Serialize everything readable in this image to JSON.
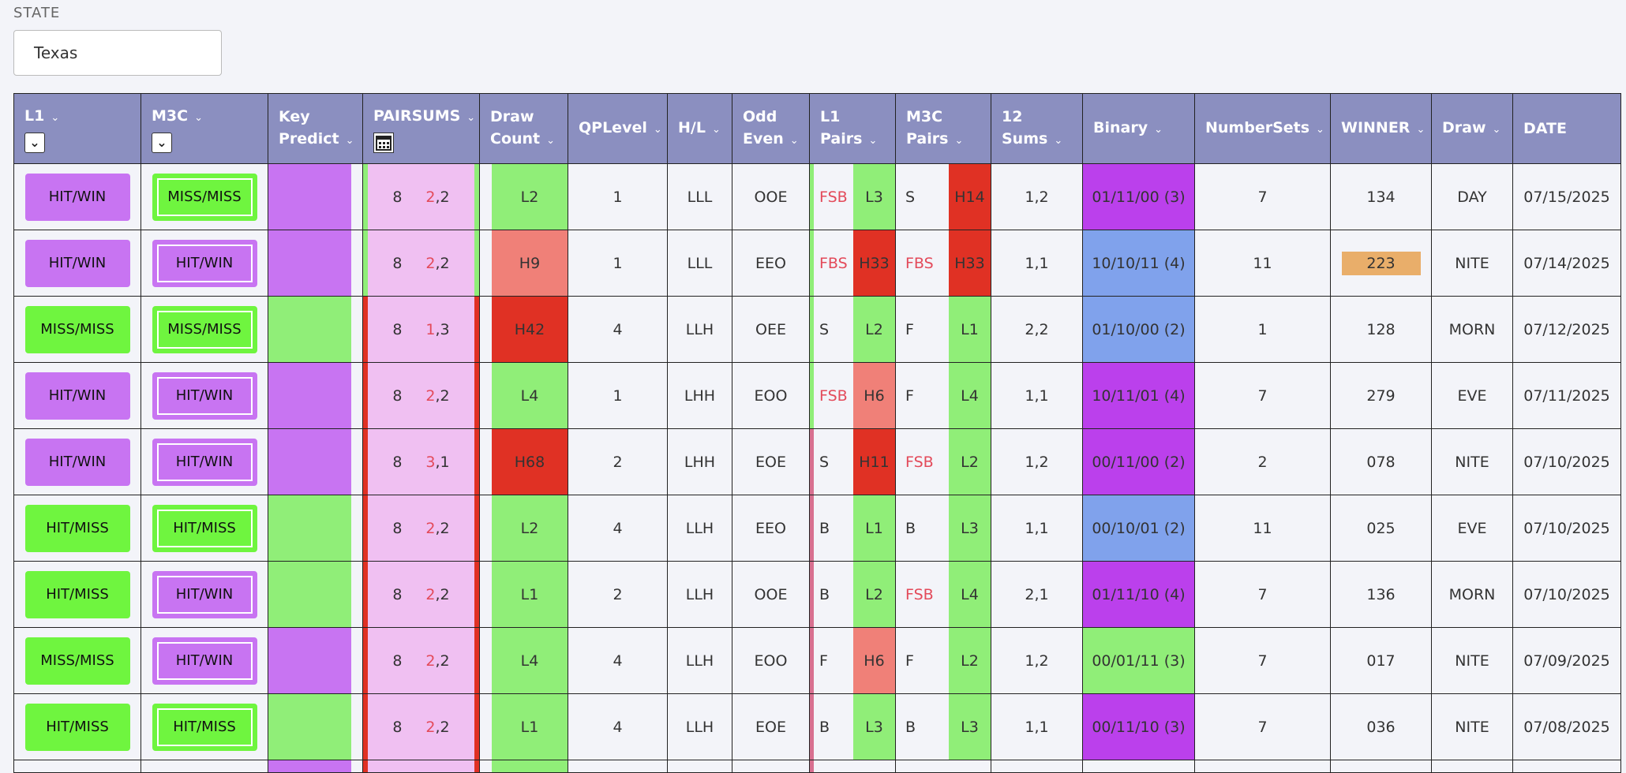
{
  "state": {
    "label": "STATE",
    "value": "Texas"
  },
  "headers": {
    "l1": "L1",
    "m3c": "M3C",
    "key_predict": [
      "Key",
      "Predict"
    ],
    "pairsums": "PAIRSUMS",
    "draw_count": [
      "Draw",
      "Count"
    ],
    "qplevel": "QPLevel",
    "hl": "H/L",
    "odd_even": [
      "Odd",
      "Even"
    ],
    "l1_pairs": [
      "L1",
      "Pairs"
    ],
    "m3c_pairs": [
      "M3C",
      "Pairs"
    ],
    "sums12": [
      "12",
      "Sums"
    ],
    "binary": "Binary",
    "numbersets": "NumberSets",
    "winner": "WINNER",
    "draw": "Draw",
    "date": "DATE"
  },
  "colors": {
    "header_bg": "#8b8fc0",
    "purple": "#c874f2",
    "green": "#6ff53f",
    "light_green": "#90ee78",
    "salmon": "#f08078",
    "red": "#e03124",
    "violet": "#bb40ec",
    "blue": "#80a2ec",
    "pink": "#f0c0f2",
    "orange": "#e9ae6a"
  },
  "rows": [
    {
      "l1": "HIT/WIN",
      "m3c": "MISS/MISS",
      "ps_a": "8",
      "ps_b": "2",
      "ps_c": ",2",
      "draw_count": "L2",
      "qp": "1",
      "hl": "LLL",
      "oe": "OOE",
      "l1p_a": "FSB",
      "l1p_b": "L3",
      "m3p_a": "S",
      "m3p_b": "H14",
      "sums": "1,2",
      "binary": "01/11/00 (3)",
      "numsets": "7",
      "winner": "134",
      "draw": "DAY",
      "date": "07/15/2025"
    },
    {
      "l1": "HIT/WIN",
      "m3c": "HIT/WIN",
      "ps_a": "8",
      "ps_b": "2",
      "ps_c": ",2",
      "draw_count": "H9",
      "qp": "1",
      "hl": "LLL",
      "oe": "EEO",
      "l1p_a": "FBS",
      "l1p_b": "H33",
      "m3p_a": "FBS",
      "m3p_b": "H33",
      "sums": "1,1",
      "binary": "10/10/11 (4)",
      "numsets": "11",
      "winner": "223",
      "draw": "NITE",
      "date": "07/14/2025"
    },
    {
      "l1": "MISS/MISS",
      "m3c": "MISS/MISS",
      "ps_a": "8",
      "ps_b": "1",
      "ps_c": ",3",
      "draw_count": "H42",
      "qp": "4",
      "hl": "LLH",
      "oe": "OEE",
      "l1p_a": "S",
      "l1p_b": "L2",
      "m3p_a": "F",
      "m3p_b": "L1",
      "sums": "2,2",
      "binary": "01/10/00 (2)",
      "numsets": "1",
      "winner": "128",
      "draw": "MORN",
      "date": "07/12/2025"
    },
    {
      "l1": "HIT/WIN",
      "m3c": "HIT/WIN",
      "ps_a": "8",
      "ps_b": "2",
      "ps_c": ",2",
      "draw_count": "L4",
      "qp": "1",
      "hl": "LHH",
      "oe": "EOO",
      "l1p_a": "FSB",
      "l1p_b": "H6",
      "m3p_a": "F",
      "m3p_b": "L4",
      "sums": "1,1",
      "binary": "10/11/01 (4)",
      "numsets": "7",
      "winner": "279",
      "draw": "EVE",
      "date": "07/11/2025"
    },
    {
      "l1": "HIT/WIN",
      "m3c": "HIT/WIN",
      "ps_a": "8",
      "ps_b": "3",
      "ps_c": ",1",
      "draw_count": "H68",
      "qp": "2",
      "hl": "LHH",
      "oe": "EOE",
      "l1p_a": "S",
      "l1p_b": "H11",
      "m3p_a": "FSB",
      "m3p_b": "L2",
      "sums": "1,2",
      "binary": "00/11/00 (2)",
      "numsets": "2",
      "winner": "078",
      "draw": "NITE",
      "date": "07/10/2025"
    },
    {
      "l1": "HIT/MISS",
      "m3c": "HIT/MISS",
      "ps_a": "8",
      "ps_b": "2",
      "ps_c": ",2",
      "draw_count": "L2",
      "qp": "4",
      "hl": "LLH",
      "oe": "EEO",
      "l1p_a": "B",
      "l1p_b": "L1",
      "m3p_a": "B",
      "m3p_b": "L3",
      "sums": "1,1",
      "binary": "00/10/01 (2)",
      "numsets": "11",
      "winner": "025",
      "draw": "EVE",
      "date": "07/10/2025"
    },
    {
      "l1": "HIT/MISS",
      "m3c": "HIT/WIN",
      "ps_a": "8",
      "ps_b": "2",
      "ps_c": ",2",
      "draw_count": "L1",
      "qp": "2",
      "hl": "LLH",
      "oe": "OOE",
      "l1p_a": "B",
      "l1p_b": "L2",
      "m3p_a": "FSB",
      "m3p_b": "L4",
      "sums": "2,1",
      "binary": "01/11/10 (4)",
      "numsets": "7",
      "winner": "136",
      "draw": "MORN",
      "date": "07/10/2025"
    },
    {
      "l1": "MISS/MISS",
      "m3c": "HIT/WIN",
      "ps_a": "8",
      "ps_b": "2",
      "ps_c": ",2",
      "draw_count": "L4",
      "qp": "4",
      "hl": "LLH",
      "oe": "EOO",
      "l1p_a": "F",
      "l1p_b": "H6",
      "m3p_a": "F",
      "m3p_b": "L2",
      "sums": "1,2",
      "binary": "00/01/11 (3)",
      "numsets": "7",
      "winner": "017",
      "draw": "NITE",
      "date": "07/09/2025"
    },
    {
      "l1": "HIT/MISS",
      "m3c": "HIT/MISS",
      "ps_a": "8",
      "ps_b": "2",
      "ps_c": ",2",
      "draw_count": "L1",
      "qp": "4",
      "hl": "LLH",
      "oe": "EOE",
      "l1p_a": "B",
      "l1p_b": "L3",
      "m3p_a": "B",
      "m3p_b": "L3",
      "sums": "1,1",
      "binary": "00/11/10 (3)",
      "numsets": "7",
      "winner": "036",
      "draw": "NITE",
      "date": "07/08/2025"
    }
  ]
}
